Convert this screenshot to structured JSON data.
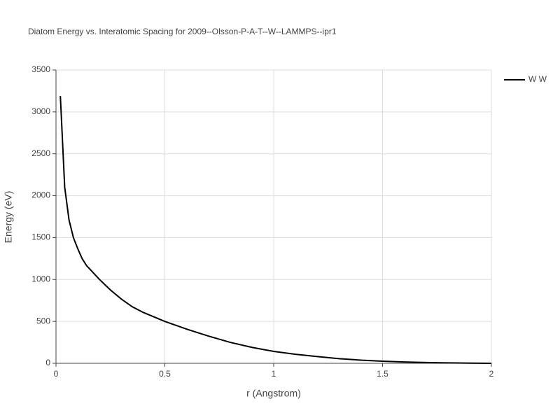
{
  "chart_data": {
    "type": "line",
    "title": "Diatom Energy vs. Interatomic Spacing for 2009--Olsson-P-A-T--W--LAMMPS--ipr1",
    "x_label": "r (Angstrom)",
    "y_label": "Energy (eV)",
    "x": [
      0.02,
      0.04,
      0.06,
      0.08,
      0.1,
      0.12,
      0.14,
      0.2,
      0.25,
      0.3,
      0.35,
      0.4,
      0.5,
      0.6,
      0.7,
      0.8,
      0.9,
      1.0,
      1.1,
      1.2,
      1.3,
      1.4,
      1.5,
      1.6,
      1.7,
      1.8,
      1.9,
      2.0
    ],
    "series": [
      {
        "name": "W W",
        "color": "#000000",
        "values": [
          3190,
          2100,
          1708,
          1500,
          1367,
          1250,
          1167,
          1000,
          875,
          767,
          675,
          608,
          500,
          408,
          325,
          250,
          190,
          142,
          108,
          80,
          55,
          38,
          25,
          16,
          9,
          5,
          2,
          0
        ]
      }
    ],
    "xlim": [
      0,
      2
    ],
    "xticks": [
      0,
      0.5,
      1,
      1.5,
      2
    ],
    "ylim": [
      0,
      3500
    ],
    "yticks": [
      0,
      500,
      1000,
      1500,
      2000,
      2500,
      3000,
      3500
    ],
    "grid": true,
    "legend": "right"
  }
}
